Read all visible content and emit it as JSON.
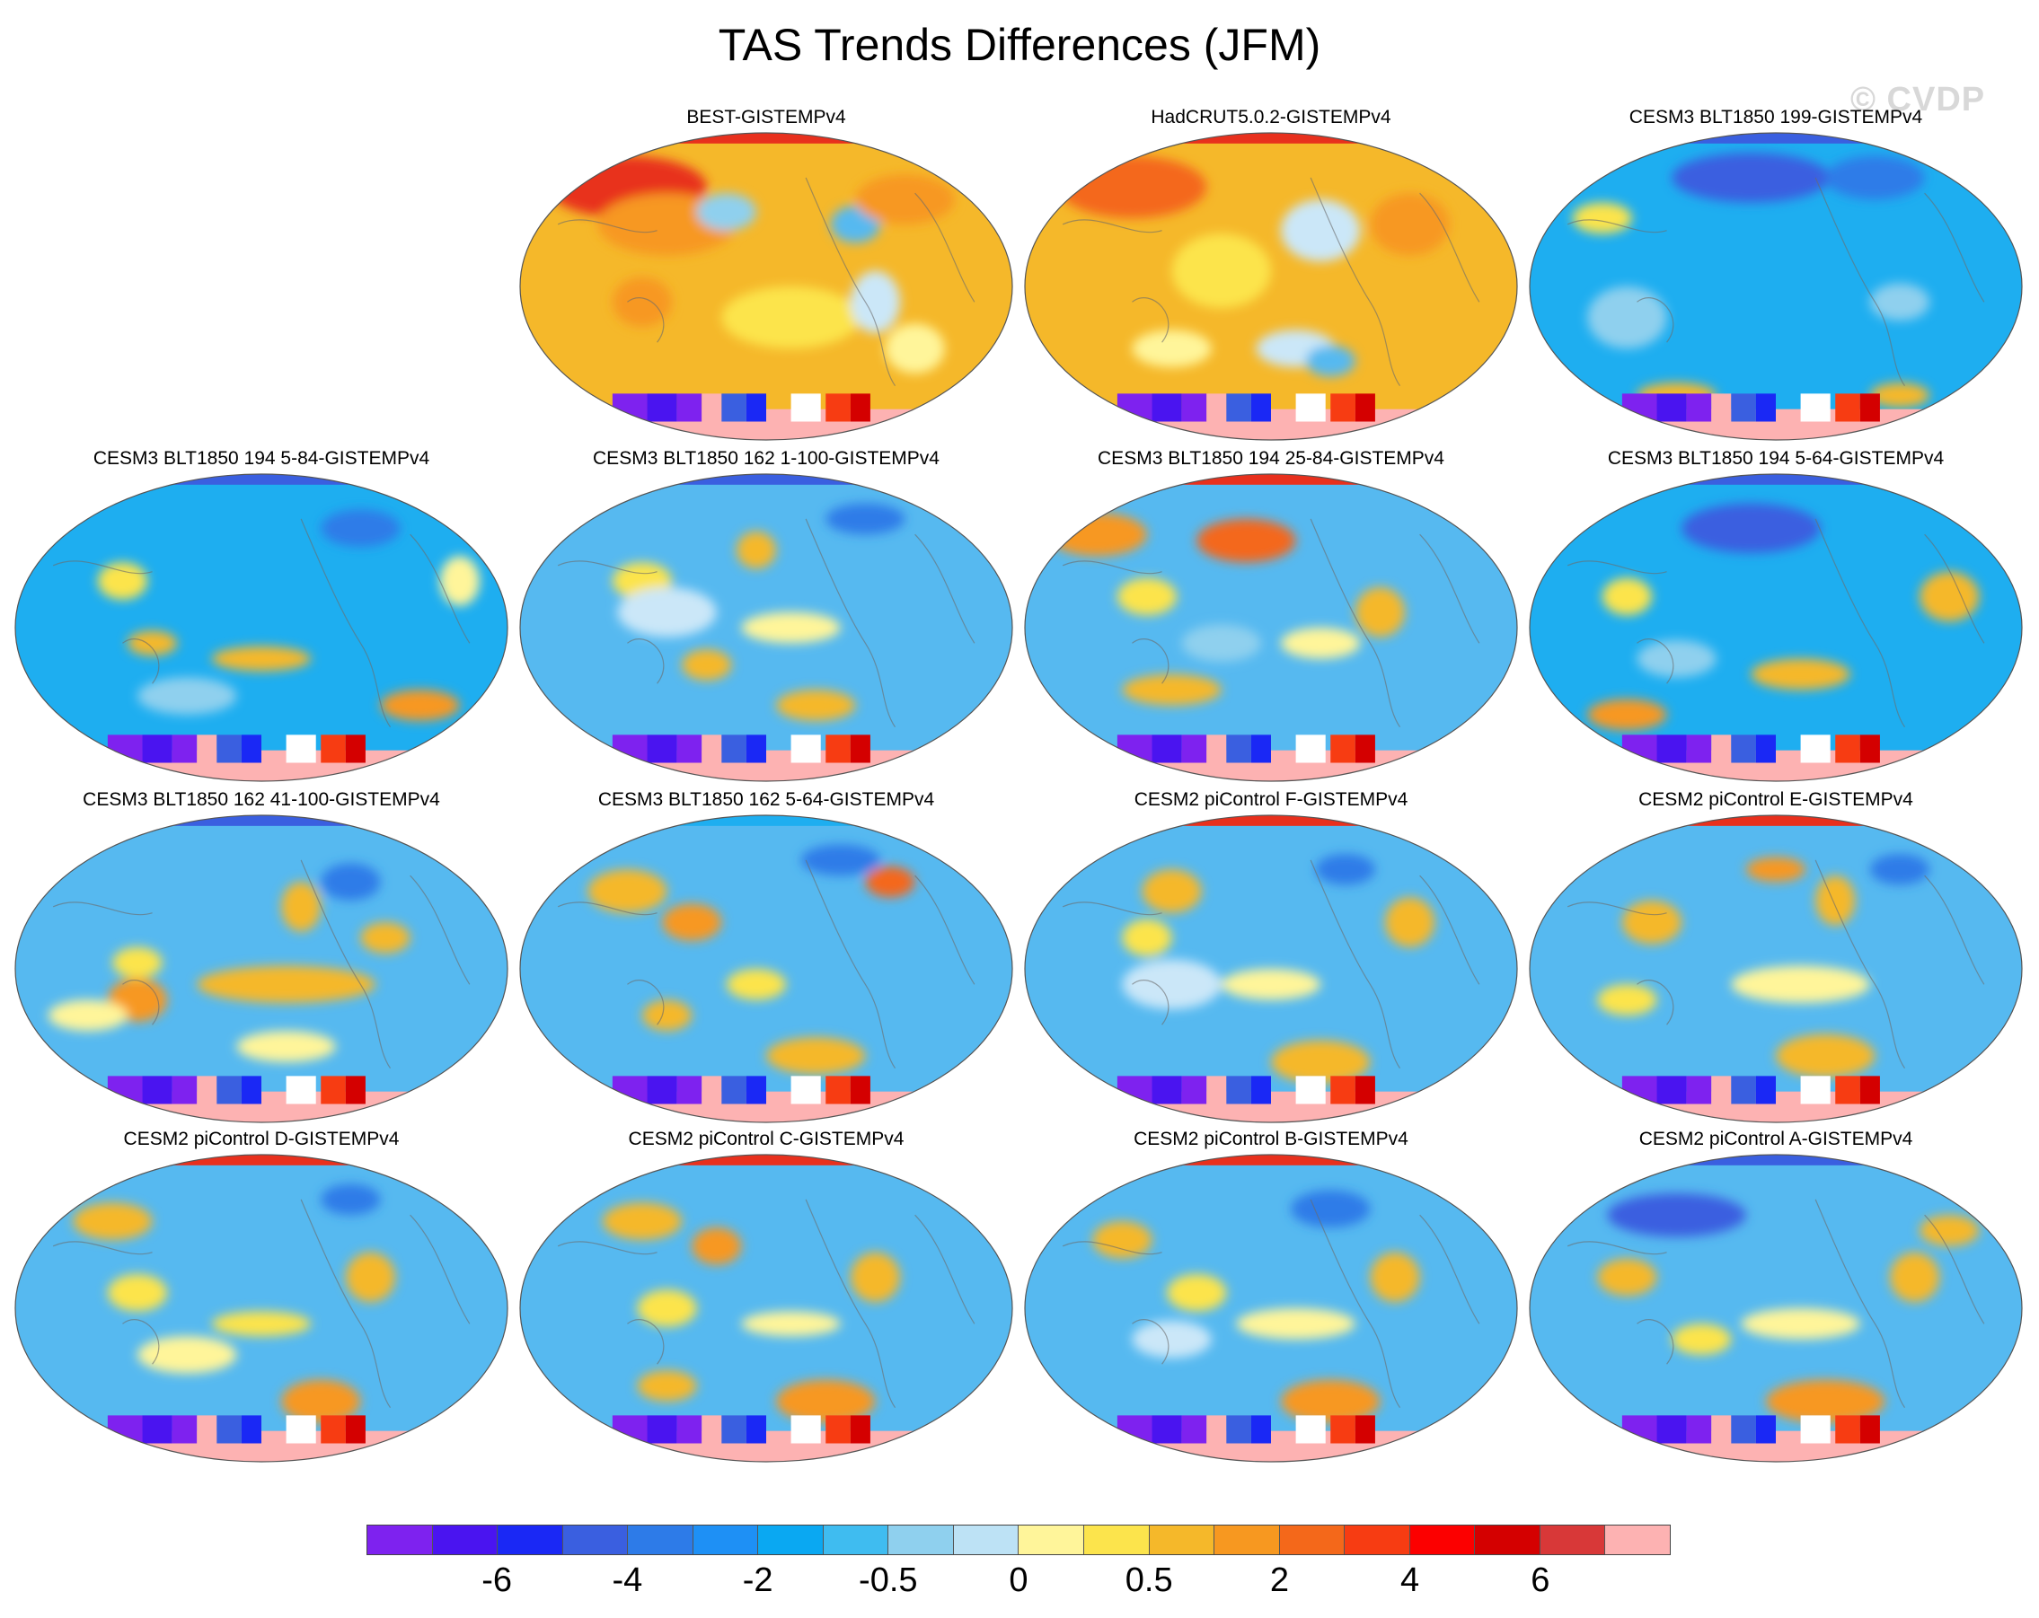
{
  "title": "TAS Trends Differences (JFM)",
  "watermark": "© CVDP",
  "panels": [
    {
      "label": "BEST-GISTEMPv4",
      "base": "#f5b82a",
      "arctic": "#e8301d",
      "blobs": [
        [
          "#e8301d",
          0.22,
          0.18,
          0.16,
          0.1
        ],
        [
          "#f79820",
          0.3,
          0.3,
          0.14,
          0.1
        ],
        [
          "#8fd0ee",
          0.42,
          0.26,
          0.06,
          0.06
        ],
        [
          "#56b9f0",
          0.68,
          0.3,
          0.05,
          0.06
        ],
        [
          "#f79820",
          0.78,
          0.22,
          0.1,
          0.08
        ],
        [
          "#fce44c",
          0.55,
          0.6,
          0.14,
          0.1
        ],
        [
          "#cbe7f8",
          0.72,
          0.55,
          0.05,
          0.1
        ],
        [
          "#f79820",
          0.25,
          0.55,
          0.06,
          0.08
        ],
        [
          "#fff59a",
          0.8,
          0.7,
          0.06,
          0.08
        ]
      ]
    },
    {
      "label": "HadCRUT5.0.2-GISTEMPv4",
      "base": "#f5b82a",
      "arctic": "#e8301d",
      "blobs": [
        [
          "#f4681a",
          0.22,
          0.18,
          0.15,
          0.1
        ],
        [
          "#fce44c",
          0.4,
          0.45,
          0.1,
          0.12
        ],
        [
          "#cbe7f8",
          0.6,
          0.32,
          0.08,
          0.1
        ],
        [
          "#cbe7f8",
          0.55,
          0.7,
          0.08,
          0.06
        ],
        [
          "#f79820",
          0.78,
          0.3,
          0.08,
          0.1
        ],
        [
          "#fff59a",
          0.3,
          0.7,
          0.08,
          0.06
        ],
        [
          "#56b9f0",
          0.62,
          0.74,
          0.05,
          0.05
        ]
      ]
    },
    {
      "label": "CESM3 BLT1850 199-GISTEMPv4",
      "base": "#1eaef0",
      "arctic": "#3a5fe0",
      "blobs": [
        [
          "#3a5fe0",
          0.45,
          0.15,
          0.16,
          0.08
        ],
        [
          "#2d7be8",
          0.7,
          0.15,
          0.1,
          0.07
        ],
        [
          "#fce44c",
          0.15,
          0.28,
          0.06,
          0.05
        ],
        [
          "#f5b82a",
          0.3,
          0.85,
          0.08,
          0.04
        ],
        [
          "#8fd0ee",
          0.2,
          0.6,
          0.08,
          0.1
        ],
        [
          "#f5b82a",
          0.75,
          0.85,
          0.06,
          0.04
        ],
        [
          "#8fd0ee",
          0.75,
          0.55,
          0.06,
          0.06
        ]
      ]
    },
    {
      "label": "CESM3 BLT1850 194 5-84-GISTEMPv4",
      "base": "#1eaef0",
      "arctic": "#3a5fe0",
      "blobs": [
        [
          "#fce44c",
          0.22,
          0.35,
          0.05,
          0.06
        ],
        [
          "#f5b82a",
          0.5,
          0.6,
          0.1,
          0.04
        ],
        [
          "#f5b82a",
          0.28,
          0.55,
          0.05,
          0.04
        ],
        [
          "#f79820",
          0.82,
          0.75,
          0.08,
          0.05
        ],
        [
          "#2d7be8",
          0.7,
          0.18,
          0.08,
          0.06
        ],
        [
          "#fff59a",
          0.9,
          0.35,
          0.04,
          0.08
        ],
        [
          "#8fd0ee",
          0.35,
          0.72,
          0.1,
          0.06
        ]
      ]
    },
    {
      "label": "CESM3 BLT1850 162 1-100-GISTEMPv4",
      "base": "#56b9f0",
      "arctic": "#3a5fe0",
      "blobs": [
        [
          "#fce44c",
          0.25,
          0.35,
          0.06,
          0.06
        ],
        [
          "#fff59a",
          0.55,
          0.5,
          0.1,
          0.05
        ],
        [
          "#f5b82a",
          0.38,
          0.62,
          0.05,
          0.05
        ],
        [
          "#f5b82a",
          0.6,
          0.75,
          0.08,
          0.05
        ],
        [
          "#cbe7f8",
          0.3,
          0.45,
          0.1,
          0.08
        ],
        [
          "#2d7be8",
          0.7,
          0.15,
          0.08,
          0.05
        ],
        [
          "#f5b82a",
          0.48,
          0.25,
          0.04,
          0.06
        ]
      ]
    },
    {
      "label": "CESM3 BLT1850 194 25-84-GISTEMPv4",
      "base": "#56b9f0",
      "arctic": "#e8301d",
      "blobs": [
        [
          "#f79820",
          0.15,
          0.2,
          0.1,
          0.07
        ],
        [
          "#f4681a",
          0.45,
          0.22,
          0.1,
          0.07
        ],
        [
          "#fce44c",
          0.25,
          0.4,
          0.06,
          0.06
        ],
        [
          "#fff59a",
          0.6,
          0.55,
          0.08,
          0.05
        ],
        [
          "#f5b82a",
          0.3,
          0.7,
          0.1,
          0.05
        ],
        [
          "#f5b82a",
          0.72,
          0.45,
          0.05,
          0.08
        ],
        [
          "#8fd0ee",
          0.4,
          0.55,
          0.08,
          0.06
        ]
      ]
    },
    {
      "label": "CESM3 BLT1850 194 5-64-GISTEMPv4",
      "base": "#1eaef0",
      "arctic": "#3a5fe0",
      "blobs": [
        [
          "#3a5fe0",
          0.45,
          0.18,
          0.14,
          0.08
        ],
        [
          "#fce44c",
          0.2,
          0.4,
          0.05,
          0.06
        ],
        [
          "#f5b82a",
          0.55,
          0.65,
          0.1,
          0.05
        ],
        [
          "#f79820",
          0.2,
          0.78,
          0.08,
          0.05
        ],
        [
          "#f5b82a",
          0.85,
          0.4,
          0.06,
          0.08
        ],
        [
          "#8fd0ee",
          0.3,
          0.6,
          0.08,
          0.06
        ]
      ]
    },
    {
      "label": "CESM3 BLT1850 162 41-100-GISTEMPv4",
      "base": "#56b9f0",
      "arctic": "#3a5fe0",
      "blobs": [
        [
          "#f5b82a",
          0.55,
          0.55,
          0.18,
          0.06
        ],
        [
          "#f79820",
          0.25,
          0.6,
          0.06,
          0.07
        ],
        [
          "#fce44c",
          0.25,
          0.48,
          0.05,
          0.05
        ],
        [
          "#fff59a",
          0.15,
          0.65,
          0.08,
          0.05
        ],
        [
          "#fff59a",
          0.55,
          0.75,
          0.1,
          0.05
        ],
        [
          "#f5b82a",
          0.58,
          0.3,
          0.04,
          0.08
        ],
        [
          "#2d7be8",
          0.68,
          0.22,
          0.06,
          0.06
        ],
        [
          "#f5b82a",
          0.75,
          0.4,
          0.05,
          0.05
        ]
      ]
    },
    {
      "label": "CESM3 BLT1850 162 5-64-GISTEMPv4",
      "base": "#56b9f0",
      "arctic": "#1eaef0",
      "blobs": [
        [
          "#f5b82a",
          0.22,
          0.25,
          0.08,
          0.07
        ],
        [
          "#f79820",
          0.35,
          0.35,
          0.06,
          0.06
        ],
        [
          "#f4681a",
          0.75,
          0.22,
          0.05,
          0.05
        ],
        [
          "#f5b82a",
          0.6,
          0.78,
          0.1,
          0.06
        ],
        [
          "#fce44c",
          0.48,
          0.55,
          0.06,
          0.05
        ],
        [
          "#f5b82a",
          0.3,
          0.65,
          0.05,
          0.05
        ],
        [
          "#2d7be8",
          0.65,
          0.15,
          0.08,
          0.05
        ]
      ]
    },
    {
      "label": "CESM2 piControl F-GISTEMPv4",
      "base": "#56b9f0",
      "arctic": "#e8301d",
      "blobs": [
        [
          "#f5b82a",
          0.3,
          0.25,
          0.06,
          0.07
        ],
        [
          "#fce44c",
          0.25,
          0.4,
          0.05,
          0.06
        ],
        [
          "#fff59a",
          0.5,
          0.55,
          0.1,
          0.05
        ],
        [
          "#f5b82a",
          0.6,
          0.8,
          0.1,
          0.07
        ],
        [
          "#f5b82a",
          0.78,
          0.35,
          0.05,
          0.08
        ],
        [
          "#cbe7f8",
          0.3,
          0.55,
          0.1,
          0.08
        ],
        [
          "#2d7be8",
          0.65,
          0.18,
          0.06,
          0.05
        ]
      ]
    },
    {
      "label": "CESM2 piControl E-GISTEMPv4",
      "base": "#56b9f0",
      "arctic": "#e8301d",
      "blobs": [
        [
          "#f5b82a",
          0.25,
          0.35,
          0.06,
          0.07
        ],
        [
          "#fff59a",
          0.55,
          0.55,
          0.14,
          0.06
        ],
        [
          "#f5b82a",
          0.6,
          0.78,
          0.1,
          0.07
        ],
        [
          "#f5b82a",
          0.62,
          0.28,
          0.04,
          0.08
        ],
        [
          "#fce44c",
          0.2,
          0.6,
          0.06,
          0.05
        ],
        [
          "#2d7be8",
          0.75,
          0.18,
          0.06,
          0.05
        ],
        [
          "#f79820",
          0.5,
          0.18,
          0.06,
          0.04
        ]
      ]
    },
    {
      "label": "CESM2 piControl D-GISTEMPv4",
      "base": "#56b9f0",
      "arctic": "#e8301d",
      "blobs": [
        [
          "#f5b82a",
          0.2,
          0.22,
          0.08,
          0.06
        ],
        [
          "#fce44c",
          0.25,
          0.45,
          0.06,
          0.06
        ],
        [
          "#fff59a",
          0.35,
          0.65,
          0.1,
          0.06
        ],
        [
          "#f79820",
          0.62,
          0.8,
          0.08,
          0.07
        ],
        [
          "#f5b82a",
          0.72,
          0.4,
          0.05,
          0.08
        ],
        [
          "#fce44c",
          0.5,
          0.55,
          0.1,
          0.04
        ],
        [
          "#2d7be8",
          0.68,
          0.15,
          0.06,
          0.05
        ]
      ]
    },
    {
      "label": "CESM2 piControl C-GISTEMPv4",
      "base": "#56b9f0",
      "arctic": "#e8301d",
      "blobs": [
        [
          "#f5b82a",
          0.25,
          0.22,
          0.08,
          0.06
        ],
        [
          "#f79820",
          0.4,
          0.3,
          0.05,
          0.06
        ],
        [
          "#fce44c",
          0.3,
          0.5,
          0.06,
          0.06
        ],
        [
          "#f5b82a",
          0.3,
          0.75,
          0.06,
          0.05
        ],
        [
          "#f79820",
          0.62,
          0.8,
          0.1,
          0.07
        ],
        [
          "#f5b82a",
          0.72,
          0.4,
          0.05,
          0.08
        ],
        [
          "#fff59a",
          0.55,
          0.55,
          0.1,
          0.04
        ]
      ]
    },
    {
      "label": "CESM2 piControl B-GISTEMPv4",
      "base": "#56b9f0",
      "arctic": "#e8301d",
      "blobs": [
        [
          "#f5b82a",
          0.2,
          0.28,
          0.06,
          0.06
        ],
        [
          "#fce44c",
          0.35,
          0.45,
          0.06,
          0.06
        ],
        [
          "#fff59a",
          0.55,
          0.55,
          0.12,
          0.05
        ],
        [
          "#f79820",
          0.62,
          0.8,
          0.1,
          0.07
        ],
        [
          "#f5b82a",
          0.75,
          0.4,
          0.05,
          0.08
        ],
        [
          "#cbe7f8",
          0.3,
          0.6,
          0.08,
          0.06
        ],
        [
          "#2d7be8",
          0.62,
          0.18,
          0.08,
          0.06
        ]
      ]
    },
    {
      "label": "CESM2 piControl A-GISTEMPv4",
      "base": "#56b9f0",
      "arctic": "#3a5fe0",
      "blobs": [
        [
          "#3a5fe0",
          0.3,
          0.2,
          0.14,
          0.07
        ],
        [
          "#f5b82a",
          0.2,
          0.4,
          0.06,
          0.06
        ],
        [
          "#fff59a",
          0.55,
          0.55,
          0.12,
          0.05
        ],
        [
          "#f79820",
          0.6,
          0.8,
          0.12,
          0.07
        ],
        [
          "#f5b82a",
          0.78,
          0.4,
          0.05,
          0.08
        ],
        [
          "#fce44c",
          0.35,
          0.6,
          0.06,
          0.05
        ],
        [
          "#f5b82a",
          0.85,
          0.25,
          0.06,
          0.05
        ]
      ]
    }
  ],
  "colorbar": {
    "colors": [
      "#7e22ef",
      "#4a14f0",
      "#1a28f5",
      "#3a5fe0",
      "#2d7be8",
      "#1e90f5",
      "#0aa8f2",
      "#3fbcf0",
      "#8fd0ee",
      "#bde2f5",
      "#fff59a",
      "#fce44c",
      "#f5b82a",
      "#f79820",
      "#f4681a",
      "#f73c12",
      "#fc0000",
      "#d40000",
      "#d83838",
      "#fdb2b2"
    ],
    "labels": [
      "-6",
      "-4",
      "-2",
      "-0.5",
      "0",
      "0.5",
      "2",
      "4",
      "6"
    ]
  }
}
